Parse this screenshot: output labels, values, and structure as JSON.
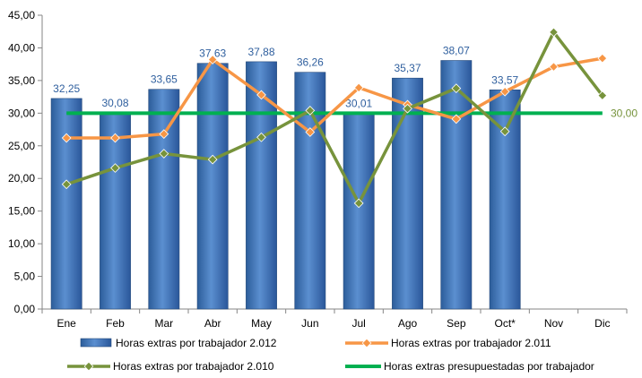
{
  "chart_data": {
    "type": "bar",
    "categories": [
      "Ene",
      "Feb",
      "Mar",
      "Abr",
      "May",
      "Jun",
      "Jul",
      "Ago",
      "Sep",
      "Oct*",
      "Nov",
      "Dic"
    ],
    "ylim": [
      0,
      45
    ],
    "yticks": [
      "0,00",
      "5,00",
      "10,00",
      "15,00",
      "20,00",
      "25,00",
      "30,00",
      "35,00",
      "40,00",
      "45,00"
    ],
    "grid": false,
    "legend_position": "bottom",
    "bar_series": {
      "name": "Horas extras por trabajador 2.012",
      "color": "#4f81bd",
      "values": [
        32.25,
        30.08,
        33.65,
        37.63,
        37.88,
        36.26,
        30.01,
        35.37,
        38.07,
        33.57,
        null,
        null
      ],
      "labels": [
        "32,25",
        "30,08",
        "33,65",
        "37,63",
        "37,88",
        "36,26",
        "30,01",
        "35,37",
        "38,07",
        "33,57",
        "",
        ""
      ]
    },
    "line_series": [
      {
        "name": "Horas extras por trabajador 2.011",
        "color": "#f79646",
        "values": [
          26.2,
          26.2,
          26.8,
          38.2,
          32.8,
          27.1,
          33.9,
          31.3,
          29.1,
          33.3,
          37.1,
          38.4
        ]
      },
      {
        "name": "Horas extras por trabajador 2.010",
        "color": "#77933c",
        "values": [
          19.1,
          21.6,
          23.8,
          22.9,
          26.3,
          30.4,
          16.2,
          30.7,
          33.8,
          27.2,
          42.4,
          32.7
        ]
      }
    ],
    "reference_line": {
      "name": "Horas extras presupuestadas por trabajador",
      "color": "#00b050",
      "value": 30.0,
      "label": "30,00"
    }
  }
}
